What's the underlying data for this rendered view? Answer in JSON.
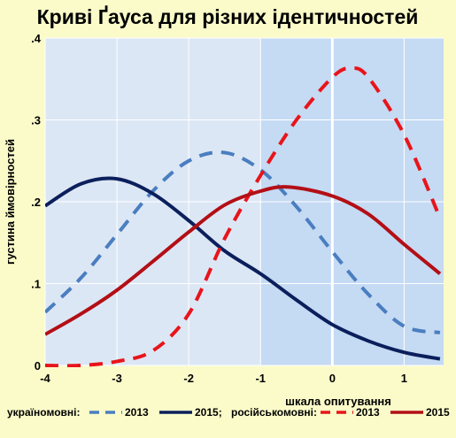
{
  "chart_data": {
    "type": "line",
    "title": "Криві Ґауса для різних ідентичностей",
    "xlabel": "шкала опитування",
    "ylabel": "густина ймовірностей",
    "xlim": [
      -4,
      1.55
    ],
    "ylim": [
      0,
      0.4
    ],
    "x_ticks": [
      -4,
      -3,
      -2,
      -1,
      0,
      1
    ],
    "x_tick_labels": [
      "-4",
      "-3",
      "-2",
      "-1",
      "0",
      "1"
    ],
    "y_ticks": [
      0,
      0.1,
      0.2,
      0.3,
      0.4
    ],
    "y_tick_labels": [
      "0",
      ".1",
      ".2",
      ".3",
      ".4"
    ],
    "grid": true,
    "highlight_band": [
      -1,
      1.55
    ],
    "colors": {
      "background": "#fafbc9",
      "plot_area": "#dce7f5",
      "highlight_band": "#c5daf3",
      "grid": "#ffffff",
      "ukr_2013": "#4a7ec0",
      "ukr_2015": "#0b1f5c",
      "rus_2013": "#e8141b",
      "rus_2015": "#b30f16"
    },
    "series": [
      {
        "name": "2013",
        "group": "україномовні",
        "style": "dashed",
        "color": "#4a7ec0",
        "x": [
          -4,
          -3.5,
          -3,
          -2.5,
          -2,
          -1.5,
          -1,
          -0.5,
          0,
          0.5,
          1,
          1.5
        ],
        "y": [
          0.065,
          0.107,
          0.16,
          0.213,
          0.25,
          0.26,
          0.239,
          0.194,
          0.139,
          0.087,
          0.048,
          0.04
        ]
      },
      {
        "name": "2015",
        "group": "україномовні",
        "style": "solid",
        "color": "#0b1f5c",
        "x": [
          -4,
          -3.5,
          -3,
          -2.5,
          -2,
          -1.5,
          -1,
          -0.5,
          0,
          0.5,
          1,
          1.5
        ],
        "y": [
          0.195,
          0.222,
          0.228,
          0.21,
          0.177,
          0.14,
          0.112,
          0.08,
          0.05,
          0.03,
          0.016,
          0.008
        ]
      },
      {
        "name": "2013",
        "group": "російськомовні",
        "style": "dashed",
        "color": "#e8141b",
        "x": [
          -4,
          -3.5,
          -3,
          -2.5,
          -2,
          -1.5,
          -1,
          -0.5,
          0,
          0.25,
          0.5,
          1,
          1.5
        ],
        "y": [
          0.0,
          0.0,
          0.005,
          0.018,
          0.063,
          0.155,
          0.232,
          0.3,
          0.352,
          0.363,
          0.352,
          0.282,
          0.18
        ]
      },
      {
        "name": "2015",
        "group": "російськомовні",
        "style": "solid",
        "color": "#b30f16",
        "x": [
          -4,
          -3.5,
          -3,
          -2.5,
          -2,
          -1.5,
          -1,
          -0.6,
          0,
          0.5,
          1,
          1.5
        ],
        "y": [
          0.038,
          0.063,
          0.092,
          0.127,
          0.163,
          0.196,
          0.213,
          0.218,
          0.207,
          0.185,
          0.148,
          0.112
        ]
      }
    ]
  },
  "legend": {
    "group1_label": "україномовні:",
    "group1_dashed": "2013",
    "group1_solid": "2015;",
    "group2_label": "російськомовні:",
    "group2_dashed": "2013",
    "group2_solid": "2015"
  }
}
